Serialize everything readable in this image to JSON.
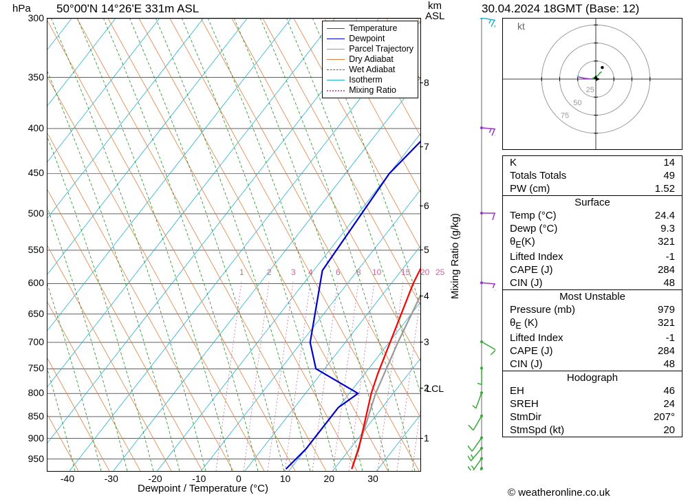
{
  "header": {
    "location": "50°00'N 14°26'E 331m ASL",
    "datetime": "30.04.2024 18GMT (Base: 12)",
    "left_unit": "hPa",
    "right_unit_top": "km",
    "right_unit_bot": "ASL",
    "hodo_unit": "kt"
  },
  "xaxis": {
    "title": "Dewpoint / Temperature (°C)",
    "ticks": [
      "-40",
      "-30",
      "-20",
      "-10",
      "0",
      "10",
      "20",
      "30"
    ],
    "domain": [
      -45,
      40
    ],
    "fontsize": 14
  },
  "yaxis_pressure": {
    "ticks": [
      "300",
      "350",
      "400",
      "450",
      "500",
      "550",
      "600",
      "650",
      "700",
      "750",
      "800",
      "850",
      "900",
      "950"
    ],
    "domain": [
      300,
      980
    ],
    "scale": "log",
    "fontsize": 14
  },
  "yaxis_alt": {
    "title": "Mixing Ratio (g/kg)",
    "ticks": [
      "1",
      "2",
      "3",
      "4",
      "5",
      "6",
      "7",
      "8"
    ],
    "fontsize": 14
  },
  "lcl": {
    "label": "LCL",
    "pressure": 790
  },
  "legend": {
    "items": [
      {
        "label": "Temperature",
        "color": "#ff0000",
        "style": "solid"
      },
      {
        "label": "Dewpoint",
        "color": "#0000cc",
        "style": "solid"
      },
      {
        "label": "Parcel Trajectory",
        "color": "#999999",
        "style": "solid"
      },
      {
        "label": "Dry Adiabat",
        "color": "#e08040",
        "style": "solid"
      },
      {
        "label": "Wet Adiabat",
        "color": "#228b22",
        "style": "dashed"
      },
      {
        "label": "Isotherm",
        "color": "#20b2cc",
        "style": "solid"
      },
      {
        "label": "Mixing Ratio",
        "color": "#cc6699",
        "style": "dotted"
      }
    ]
  },
  "mixing_ratio_labels": [
    "1",
    "2",
    "3",
    "4",
    "6",
    "8",
    "10",
    "15",
    "20",
    "25"
  ],
  "mixing_ratio_x": [
    245,
    285,
    320,
    345,
    385,
    415,
    438,
    480,
    508,
    530
  ],
  "background": {
    "dry_adiabat": {
      "color": "#e08040",
      "width": 0.8,
      "slope_skew": 60,
      "count": 18
    },
    "wet_adiabat": {
      "color": "#228b22",
      "width": 0.8,
      "dash": "4,3"
    },
    "isotherm": {
      "color": "#20b2cc",
      "width": 0.8,
      "skew_deg": 45,
      "count": 20
    },
    "mixing_ratio": {
      "color": "#cc6699",
      "width": 0.8,
      "dash": "2,3"
    },
    "hgrid": {
      "color": "#000000",
      "width": 0.6
    }
  },
  "sounding": {
    "temperature": {
      "color": "#ff0000",
      "width": 2.2,
      "points": [
        [
          24,
          975
        ],
        [
          22,
          925
        ],
        [
          15,
          800
        ],
        [
          13,
          760
        ],
        [
          5,
          600
        ],
        [
          2,
          530
        ],
        [
          0,
          490
        ],
        [
          -3,
          430
        ],
        [
          -5,
          400
        ],
        [
          -5,
          350
        ],
        [
          -12,
          300
        ]
      ]
    },
    "dewpoint": {
      "color": "#0000cc",
      "width": 2.2,
      "points": [
        [
          9,
          975
        ],
        [
          10,
          925
        ],
        [
          10,
          830
        ],
        [
          12,
          800
        ],
        [
          -2,
          750
        ],
        [
          -8,
          700
        ],
        [
          -18,
          580
        ],
        [
          -20,
          450
        ],
        [
          -18,
          400
        ],
        [
          -19,
          350
        ],
        [
          -30,
          300
        ]
      ]
    },
    "parcel": {
      "color": "#999999",
      "width": 2.2,
      "points": [
        [
          24,
          975
        ],
        [
          16,
          800
        ],
        [
          12,
          700
        ],
        [
          8,
          600
        ],
        [
          4,
          520
        ],
        [
          0,
          450
        ],
        [
          -3,
          400
        ],
        [
          -8,
          350
        ],
        [
          -13,
          300
        ]
      ]
    }
  },
  "windbarbs": {
    "color_low": "#33aa33",
    "color_mid": "#9933cc",
    "color_high": "#20b2cc",
    "levels": [
      {
        "p": 975,
        "dir": 210,
        "spd": 10,
        "c": "#33aa33"
      },
      {
        "p": 950,
        "dir": 215,
        "spd": 15,
        "c": "#33aa33"
      },
      {
        "p": 925,
        "dir": 220,
        "spd": 15,
        "c": "#33aa33"
      },
      {
        "p": 900,
        "dir": 215,
        "spd": 10,
        "c": "#33aa33"
      },
      {
        "p": 850,
        "dir": 210,
        "spd": 10,
        "c": "#33aa33"
      },
      {
        "p": 800,
        "dir": 200,
        "spd": 5,
        "c": "#33aa33"
      },
      {
        "p": 750,
        "dir": 180,
        "spd": 5,
        "c": "#33aa33"
      },
      {
        "p": 700,
        "dir": 120,
        "spd": 10,
        "c": "#33aa33"
      },
      {
        "p": 600,
        "dir": 95,
        "spd": 15,
        "c": "#9933cc"
      },
      {
        "p": 500,
        "dir": 90,
        "spd": 20,
        "c": "#9933cc"
      },
      {
        "p": 400,
        "dir": 95,
        "spd": 25,
        "c": "#9933cc"
      },
      {
        "p": 300,
        "dir": 100,
        "spd": 25,
        "c": "#20b2cc"
      }
    ]
  },
  "indices": {
    "top": [
      {
        "k": "K",
        "v": "14"
      },
      {
        "k": "Totals Totals",
        "v": "49"
      },
      {
        "k": "PW (cm)",
        "v": "1.52"
      }
    ],
    "surface_title": "Surface",
    "surface": [
      {
        "k": "Temp (°C)",
        "v": "24.4"
      },
      {
        "k": "Dewp (°C)",
        "v": "9.3"
      },
      {
        "k": "θ<sub>E</sub>(K)",
        "v": "321",
        "html": true
      },
      {
        "k": "Lifted Index",
        "v": "-1"
      },
      {
        "k": "CAPE (J)",
        "v": "284"
      },
      {
        "k": "CIN (J)",
        "v": "48"
      }
    ],
    "mu_title": "Most Unstable",
    "mu": [
      {
        "k": "Pressure (mb)",
        "v": "979"
      },
      {
        "k": "θ<sub>E</sub> (K)",
        "v": "321",
        "html": true
      },
      {
        "k": "Lifted Index",
        "v": "-1"
      },
      {
        "k": "CAPE (J)",
        "v": "284"
      },
      {
        "k": "CIN (J)",
        "v": "48"
      }
    ],
    "hodo_title": "Hodograph",
    "hodo": [
      {
        "k": "EH",
        "v": "46"
      },
      {
        "k": "SREH",
        "v": "24"
      },
      {
        "k": "StmDir",
        "v": "207°"
      },
      {
        "k": "StmSpd (kt)",
        "v": "20"
      }
    ]
  },
  "hodograph": {
    "rings": [
      25,
      50,
      75
    ],
    "ring_color": "#999999",
    "max": 80,
    "points": [
      {
        "u": 5,
        "v": 8,
        "c": "#33aa33"
      },
      {
        "u": 8,
        "v": 10,
        "c": "#33aa33"
      },
      {
        "u": 6,
        "v": 9,
        "c": "#33aa33"
      },
      {
        "u": 3,
        "v": 5,
        "c": "#33aa33"
      },
      {
        "u": -6,
        "v": 0,
        "c": "#33aa33"
      },
      {
        "u": -15,
        "v": 1,
        "c": "#9933cc"
      },
      {
        "u": -20,
        "v": 2,
        "c": "#9933cc"
      },
      {
        "u": -24,
        "v": 3,
        "c": "#9933cc"
      },
      {
        "u": -25,
        "v": 5,
        "c": "#20b2cc"
      }
    ],
    "storm": {
      "u": 9,
      "v": 16,
      "color": "#000000"
    }
  },
  "copyright": "© weatheronline.co.uk"
}
